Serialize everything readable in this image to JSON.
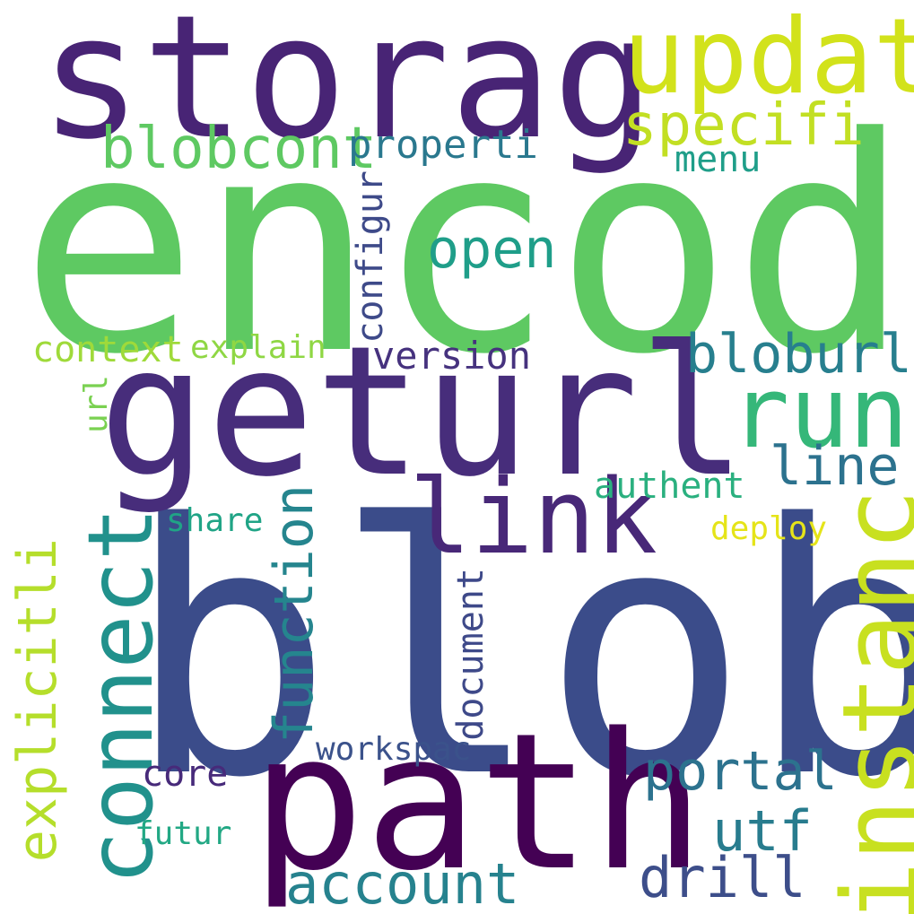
{
  "words": [
    {
      "key": "encod",
      "text": "encod",
      "color": "#5ec962",
      "orientation": "horizontal"
    },
    {
      "key": "blob",
      "text": "blob",
      "color": "#3b4c8a",
      "orientation": "horizontal"
    },
    {
      "key": "storag",
      "text": "storag",
      "color": "#482475",
      "orientation": "horizontal"
    },
    {
      "key": "geturl",
      "text": "geturl",
      "color": "#472d7b",
      "orientation": "horizontal"
    },
    {
      "key": "path",
      "text": "path",
      "color": "#440154",
      "orientation": "horizontal"
    },
    {
      "key": "updat",
      "text": "updat",
      "color": "#d2e21b",
      "orientation": "horizontal"
    },
    {
      "key": "run",
      "text": "run",
      "color": "#35b779",
      "orientation": "horizontal"
    },
    {
      "key": "instanc",
      "text": "instanc",
      "color": "#c8e020",
      "orientation": "vertical"
    },
    {
      "key": "link",
      "text": "link",
      "color": "#482878",
      "orientation": "horizontal"
    },
    {
      "key": "connect",
      "text": "connect",
      "color": "#21918c",
      "orientation": "vertical"
    },
    {
      "key": "specifi",
      "text": "specifi",
      "color": "#c2df23",
      "orientation": "horizontal"
    },
    {
      "key": "blobcont",
      "text": "blobcont",
      "color": "#5ec962",
      "orientation": "horizontal"
    },
    {
      "key": "properti",
      "text": "properti",
      "color": "#2a788e",
      "orientation": "horizontal"
    },
    {
      "key": "menu",
      "text": "menu",
      "color": "#1f9e89",
      "orientation": "horizontal"
    },
    {
      "key": "open",
      "text": "open",
      "color": "#1f9e89",
      "orientation": "horizontal"
    },
    {
      "key": "configur",
      "text": "configur",
      "color": "#3e4a89",
      "orientation": "vertical"
    },
    {
      "key": "bloburl",
      "text": "bloburl",
      "color": "#277f8e",
      "orientation": "horizontal"
    },
    {
      "key": "context",
      "text": "context",
      "color": "#9fda3a",
      "orientation": "horizontal"
    },
    {
      "key": "explain",
      "text": "explain",
      "color": "#8fd744",
      "orientation": "horizontal"
    },
    {
      "key": "version",
      "text": "version",
      "color": "#46327e",
      "orientation": "horizontal"
    },
    {
      "key": "line",
      "text": "line",
      "color": "#2c728e",
      "orientation": "horizontal"
    },
    {
      "key": "url",
      "text": "url",
      "color": "#7ad151",
      "orientation": "vertical"
    },
    {
      "key": "function",
      "text": "function",
      "color": "#25858e",
      "orientation": "vertical"
    },
    {
      "key": "authent",
      "text": "authent",
      "color": "#2ab07f",
      "orientation": "horizontal"
    },
    {
      "key": "share",
      "text": "share",
      "color": "#20a486",
      "orientation": "horizontal"
    },
    {
      "key": "deploy",
      "text": "deploy",
      "color": "#e5e419",
      "orientation": "horizontal"
    },
    {
      "key": "explicitli",
      "text": "explicitli",
      "color": "#b5de2b",
      "orientation": "vertical"
    },
    {
      "key": "document",
      "text": "document",
      "color": "#3e4989",
      "orientation": "vertical"
    },
    {
      "key": "portal",
      "text": "portal",
      "color": "#2c728e",
      "orientation": "horizontal"
    },
    {
      "key": "workspac",
      "text": "workspac",
      "color": "#3b528b",
      "orientation": "horizontal"
    },
    {
      "key": "core",
      "text": "core",
      "color": "#472a7a",
      "orientation": "horizontal"
    },
    {
      "key": "utf",
      "text": "utf",
      "color": "#287c8e",
      "orientation": "horizontal"
    },
    {
      "key": "futur",
      "text": "futur",
      "color": "#22a884",
      "orientation": "horizontal"
    },
    {
      "key": "drill",
      "text": "drill",
      "color": "#3d4e8a",
      "orientation": "horizontal"
    },
    {
      "key": "account",
      "text": "account",
      "color": "#26828e",
      "orientation": "horizontal"
    }
  ]
}
